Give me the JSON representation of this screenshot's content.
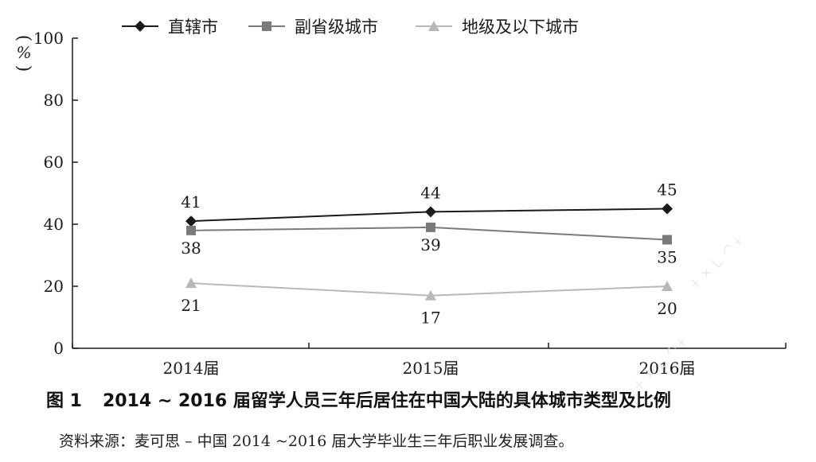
{
  "chart_data": {
    "type": "line",
    "categories": [
      "2014届",
      "2015届",
      "2016届"
    ],
    "series": [
      {
        "name": "直辖市",
        "values": [
          41,
          44,
          45
        ],
        "color": "#1a1a1a",
        "marker": "diamond"
      },
      {
        "name": "副省级城市",
        "values": [
          38,
          39,
          35
        ],
        "color": "#7a7a7a",
        "marker": "square"
      },
      {
        "name": "地级及以下城市",
        "values": [
          21,
          17,
          20
        ],
        "color": "#b8b8b8",
        "marker": "triangle"
      }
    ],
    "title": "",
    "xlabel": "",
    "ylabel": "%",
    "ylim": [
      0,
      100
    ],
    "yticks": [
      0,
      20,
      40,
      60,
      80,
      100
    ],
    "grid": false,
    "legend_position": "top"
  },
  "caption": {
    "figure_number": "图 1",
    "text": "2014 ~ 2016 届留学人员三年后居住在中国大陆的具体城市类型及比例"
  },
  "source": "资料来源：麦可思 – 中国 2014 ~2016 届大学毕业生三年后职业发展调查。"
}
